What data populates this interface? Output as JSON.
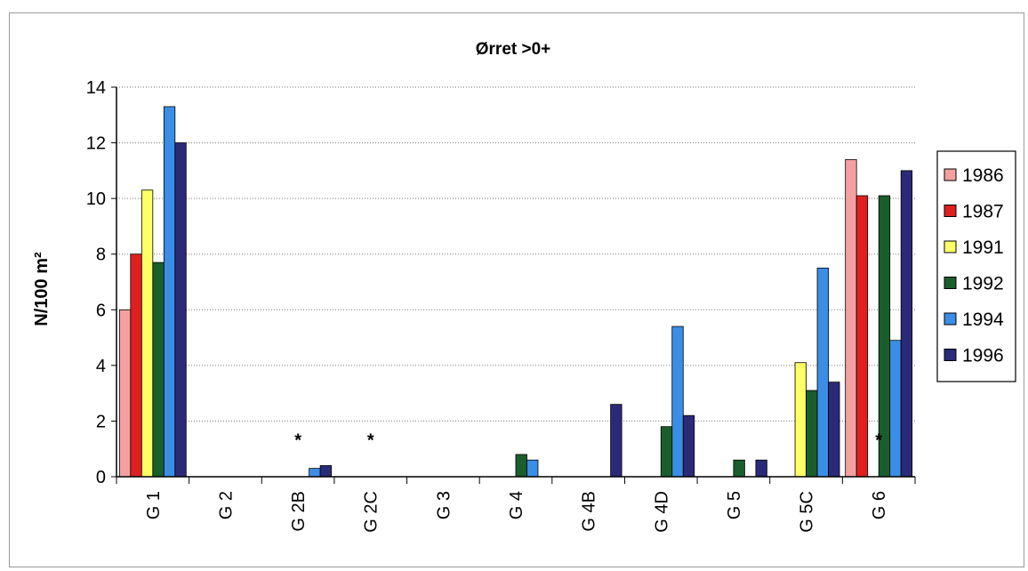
{
  "chart_data": {
    "type": "bar",
    "title": "Ørret >0+",
    "ylabel": "N/100 m²",
    "xlabel": "",
    "ylim": [
      0,
      14
    ],
    "yticks": [
      0,
      2,
      4,
      6,
      8,
      10,
      12,
      14
    ],
    "grid": true,
    "legend_position": "right",
    "categories": [
      "G 1",
      "G 2",
      "G 2B",
      "G 2C",
      "G 3",
      "G 4",
      "G 4B",
      "G 4D",
      "G 5",
      "G 5C",
      "G 6"
    ],
    "series": [
      {
        "name": "1986",
        "color": "#f4a0a0",
        "values": [
          6.0,
          0,
          0,
          0,
          0,
          0,
          0,
          0,
          0,
          0,
          11.4
        ]
      },
      {
        "name": "1987",
        "color": "#e02020",
        "values": [
          8.0,
          0,
          0,
          0,
          0,
          0,
          0,
          0,
          0,
          0,
          10.1
        ]
      },
      {
        "name": "1991",
        "color": "#ffff66",
        "values": [
          10.3,
          0,
          0,
          0,
          0,
          0,
          0,
          0,
          0,
          4.1,
          0
        ]
      },
      {
        "name": "1992",
        "color": "#1a5e2c",
        "values": [
          7.7,
          0,
          0,
          0,
          0,
          0.8,
          0,
          1.8,
          0.6,
          3.1,
          10.1
        ]
      },
      {
        "name": "1994",
        "color": "#3a8ee6",
        "values": [
          13.3,
          0,
          0.3,
          0,
          0,
          0.6,
          0,
          5.4,
          0,
          7.5,
          4.9
        ]
      },
      {
        "name": "1996",
        "color": "#2a2a78",
        "values": [
          12.0,
          0,
          0.4,
          0,
          0,
          0,
          2.6,
          2.2,
          0.6,
          3.4,
          11.0
        ]
      }
    ],
    "annotations": [
      {
        "text": "*",
        "category": "G 2B"
      },
      {
        "text": "*",
        "category": "G 2C"
      },
      {
        "text": "*",
        "category": "G 6"
      }
    ]
  }
}
